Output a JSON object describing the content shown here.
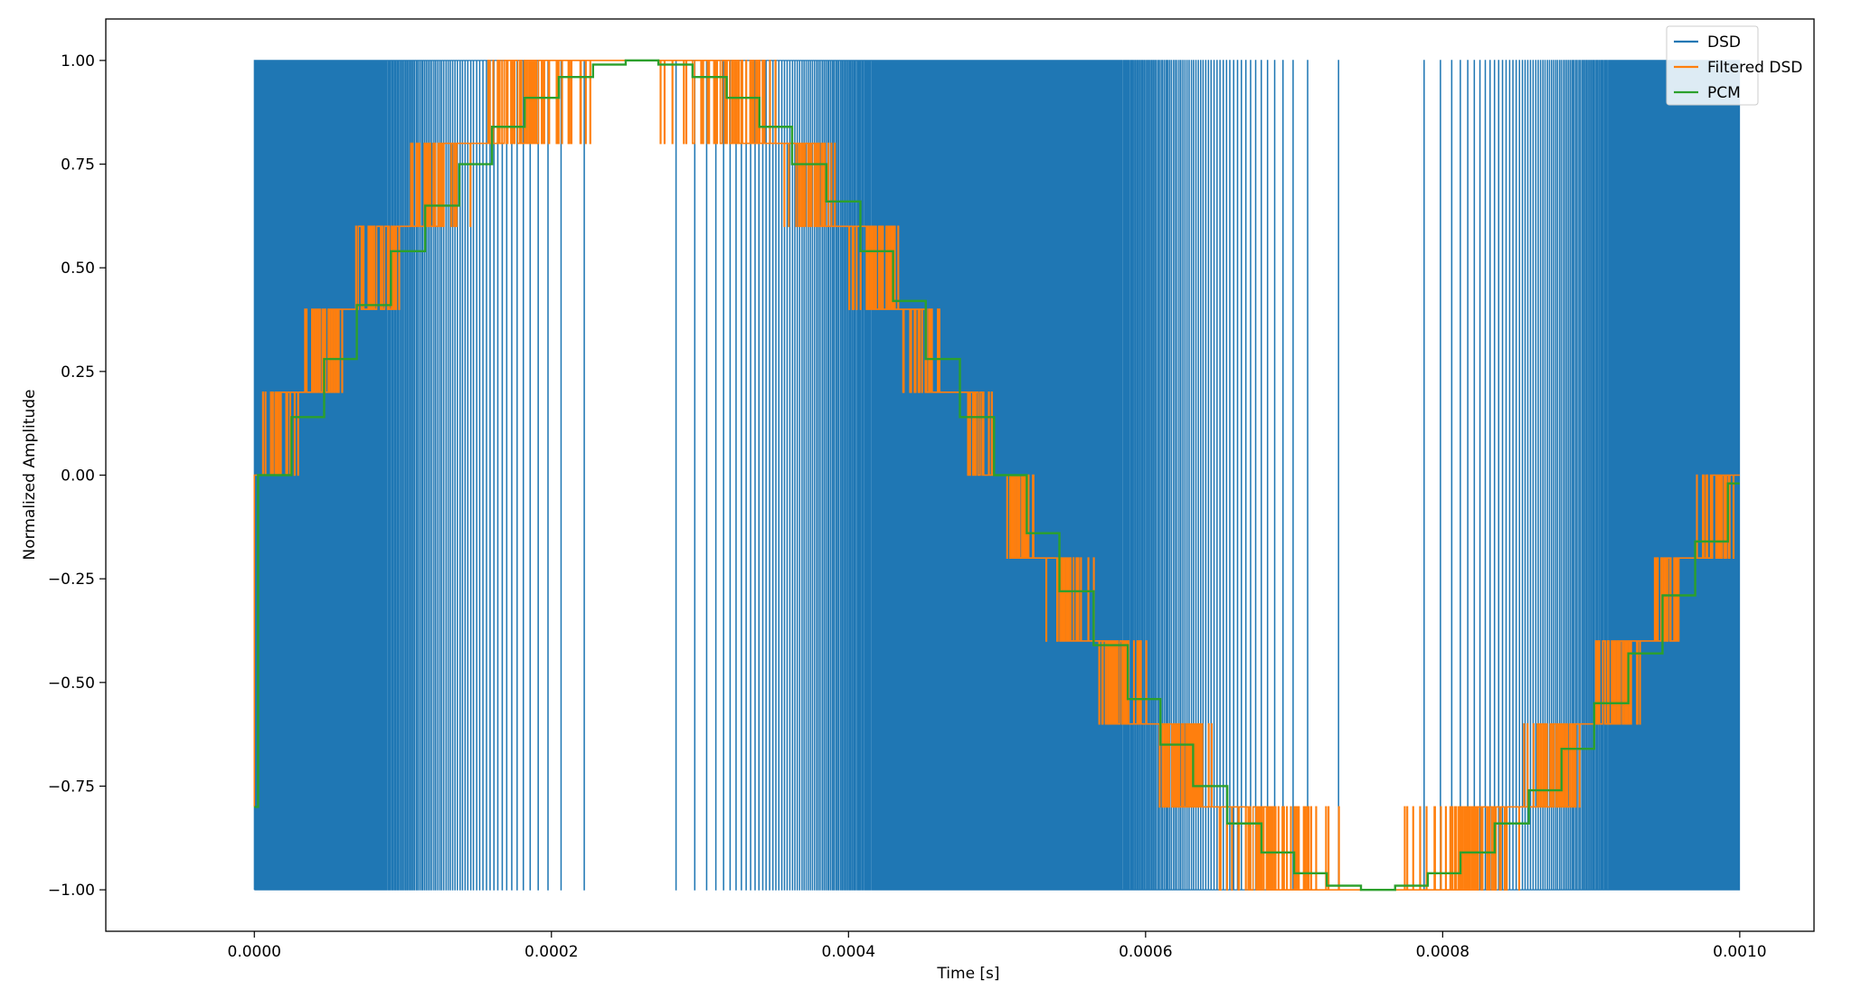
{
  "chart_data": {
    "type": "line",
    "title": "",
    "xlabel": "Time [s]",
    "ylabel": "Normalized Amplitude",
    "xlim": [
      -0.0001,
      0.00105
    ],
    "ylim": [
      -1.1,
      1.1
    ],
    "xticks": [
      0.0,
      0.0002,
      0.0004,
      0.0006,
      0.0008,
      0.001
    ],
    "xtick_labels": [
      "0.0000",
      "0.0002",
      "0.0004",
      "0.0006",
      "0.0008",
      "0.0010"
    ],
    "yticks": [
      1.0,
      0.75,
      0.5,
      0.25,
      0.0,
      -0.25,
      -0.5,
      -0.75,
      -1.0
    ],
    "ytick_labels": [
      "1.00",
      "0.75",
      "0.50",
      "0.25",
      "0.00",
      "−0.25",
      "−0.50",
      "−0.75",
      "−1.00"
    ],
    "grid": false,
    "legend_position": "top-right",
    "signal": {
      "frequency_hz": 1000,
      "duration_s": 0.001,
      "dsd_band": [
        -1.0,
        1.0
      ],
      "quantization_step": 0.2
    },
    "series": [
      {
        "name": "DSD",
        "color": "#1f77b4",
        "kind": "dsd"
      },
      {
        "name": "Filtered DSD",
        "color": "#ff7f0e",
        "kind": "filtered"
      },
      {
        "name": "PCM",
        "color": "#2ca02c",
        "kind": "pcm",
        "x": [
          0.0,
          2.5e-06,
          2.5e-05,
          4.7e-05,
          6.9e-05,
          9.2e-05,
          0.000115,
          0.000138,
          0.00016,
          0.000182,
          0.000205,
          0.000228,
          0.00025,
          0.000272,
          0.000295,
          0.000318,
          0.00034,
          0.000362,
          0.000385,
          0.000408,
          0.00043,
          0.000452,
          0.000475,
          0.000498,
          0.00052,
          0.000542,
          0.000565,
          0.000588,
          0.00061,
          0.000632,
          0.000655,
          0.000678,
          0.0007,
          0.000722,
          0.000745,
          0.000768,
          0.00079,
          0.000812,
          0.000835,
          0.000858,
          0.00088,
          0.000902,
          0.000925,
          0.000948,
          0.00097,
          0.000992,
          0.001
        ],
        "y": [
          -0.8,
          0.0,
          0.14,
          0.28,
          0.41,
          0.54,
          0.65,
          0.75,
          0.84,
          0.91,
          0.96,
          0.99,
          1.0,
          0.99,
          0.96,
          0.91,
          0.84,
          0.75,
          0.66,
          0.54,
          0.42,
          0.28,
          0.14,
          0.0,
          -0.14,
          -0.28,
          -0.41,
          -0.54,
          -0.65,
          -0.75,
          -0.84,
          -0.91,
          -0.96,
          -0.99,
          -1.0,
          -0.99,
          -0.96,
          -0.91,
          -0.84,
          -0.76,
          -0.66,
          -0.55,
          -0.43,
          -0.29,
          -0.16,
          -0.02,
          -0.02
        ]
      }
    ]
  }
}
